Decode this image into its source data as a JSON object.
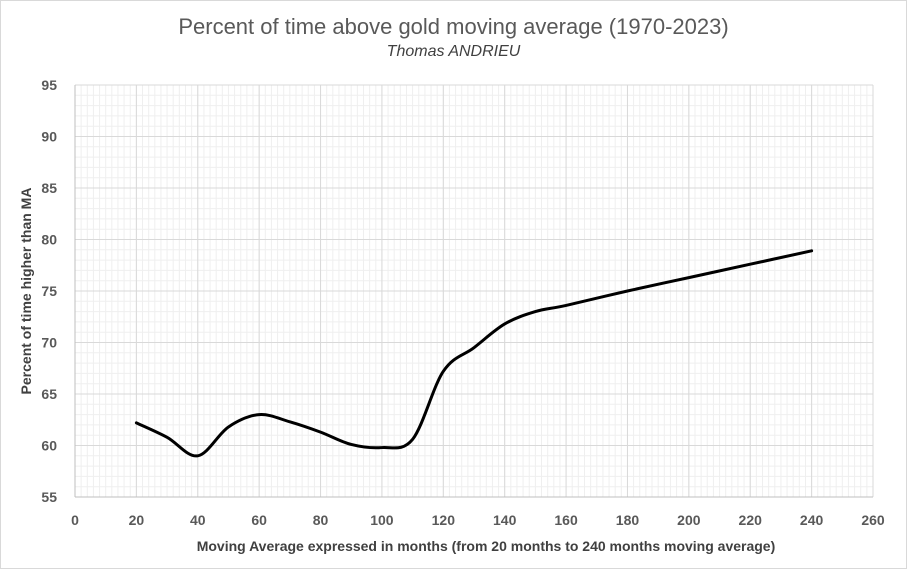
{
  "chart_data": {
    "type": "line",
    "title": "Percent of time above gold moving average (1970-2023)",
    "subtitle": "Thomas ANDRIEU",
    "xlabel": "Moving Average expressed in months (from 20 months to 240 months moving average)",
    "ylabel": "Percent of time higher than MA",
    "xlim": [
      0,
      260
    ],
    "ylim": [
      55,
      95
    ],
    "x_ticks": [
      0,
      20,
      40,
      60,
      80,
      100,
      120,
      140,
      160,
      180,
      200,
      220,
      240,
      260
    ],
    "y_ticks": [
      55,
      60,
      65,
      70,
      75,
      80,
      85,
      90,
      95
    ],
    "grid": true,
    "legend": "none",
    "series": [
      {
        "color": "#000000",
        "x": [
          20,
          30,
          40,
          50,
          60,
          70,
          80,
          90,
          100,
          110,
          120,
          130,
          140,
          150,
          160,
          180,
          200,
          220,
          240
        ],
        "y": [
          62.2,
          60.8,
          59.0,
          61.8,
          63.0,
          62.3,
          61.3,
          60.1,
          59.8,
          60.6,
          67.2,
          69.5,
          71.8,
          73.0,
          73.6,
          75.0,
          76.3,
          77.6,
          78.9
        ]
      }
    ]
  }
}
